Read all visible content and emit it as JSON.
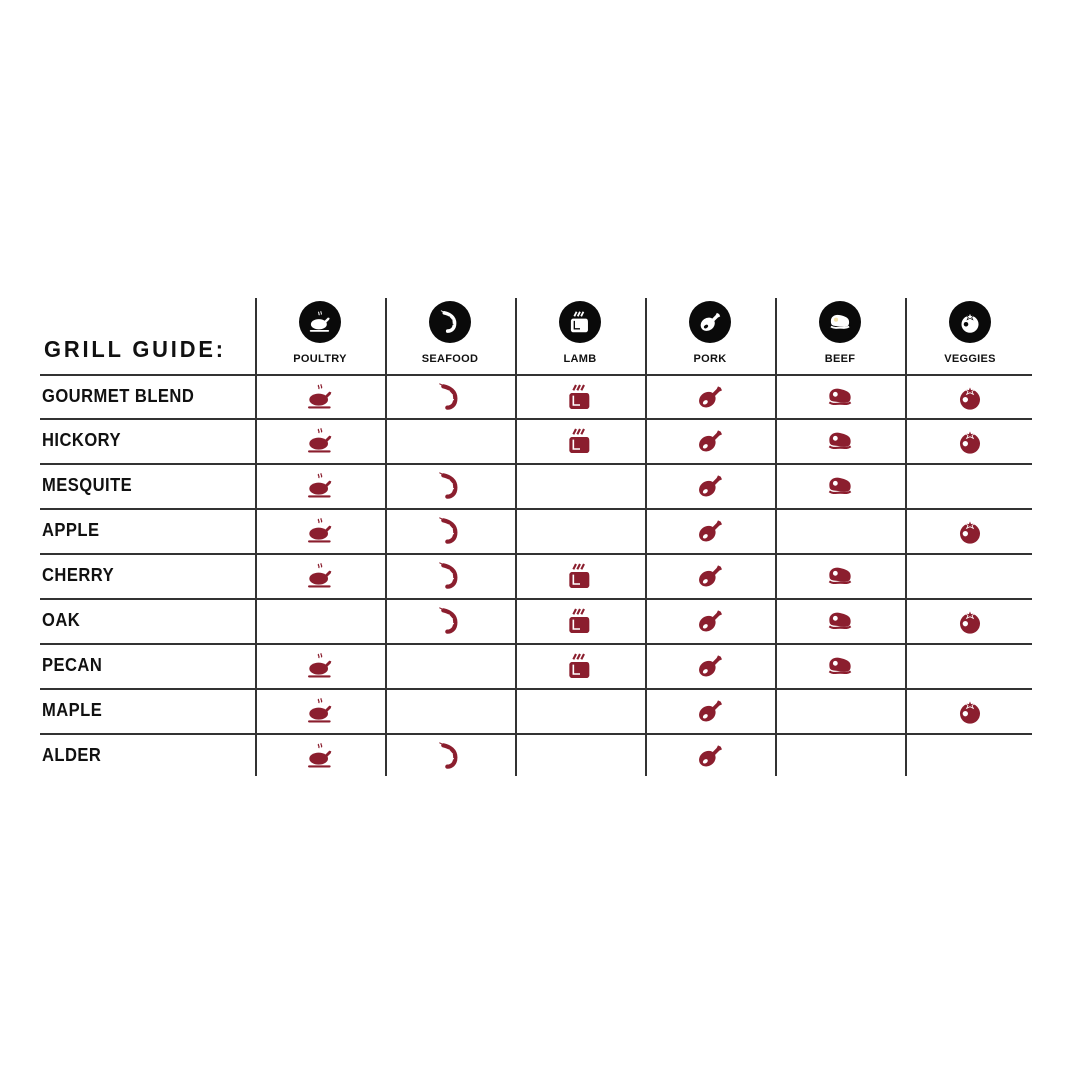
{
  "title": "GRILL GUIDE:",
  "colors": {
    "icon": "#8b1e2e",
    "header_circle": "#0a0a0a",
    "lines": "#333333"
  },
  "columns": [
    {
      "label": "POULTRY",
      "icon": "poultry-icon"
    },
    {
      "label": "SEAFOOD",
      "icon": "shrimp-icon"
    },
    {
      "label": "LAMB",
      "icon": "lamb-icon"
    },
    {
      "label": "PORK",
      "icon": "ham-icon"
    },
    {
      "label": "BEEF",
      "icon": "steak-icon"
    },
    {
      "label": "VEGGIES",
      "icon": "tomato-icon"
    }
  ],
  "rows": [
    {
      "label": "GOURMET BLEND",
      "marks": [
        true,
        true,
        true,
        true,
        true,
        true
      ]
    },
    {
      "label": "HICKORY",
      "marks": [
        true,
        false,
        true,
        true,
        true,
        true
      ]
    },
    {
      "label": "MESQUITE",
      "marks": [
        true,
        true,
        false,
        true,
        true,
        false
      ]
    },
    {
      "label": "APPLE",
      "marks": [
        true,
        true,
        false,
        true,
        false,
        true
      ]
    },
    {
      "label": "CHERRY",
      "marks": [
        true,
        true,
        true,
        true,
        true,
        false
      ]
    },
    {
      "label": "OAK",
      "marks": [
        false,
        true,
        true,
        true,
        true,
        true
      ]
    },
    {
      "label": "PECAN",
      "marks": [
        true,
        false,
        true,
        true,
        true,
        false
      ]
    },
    {
      "label": "MAPLE",
      "marks": [
        true,
        false,
        false,
        true,
        false,
        true
      ]
    },
    {
      "label": "ALDER",
      "marks": [
        true,
        true,
        false,
        true,
        false,
        false
      ]
    }
  ]
}
